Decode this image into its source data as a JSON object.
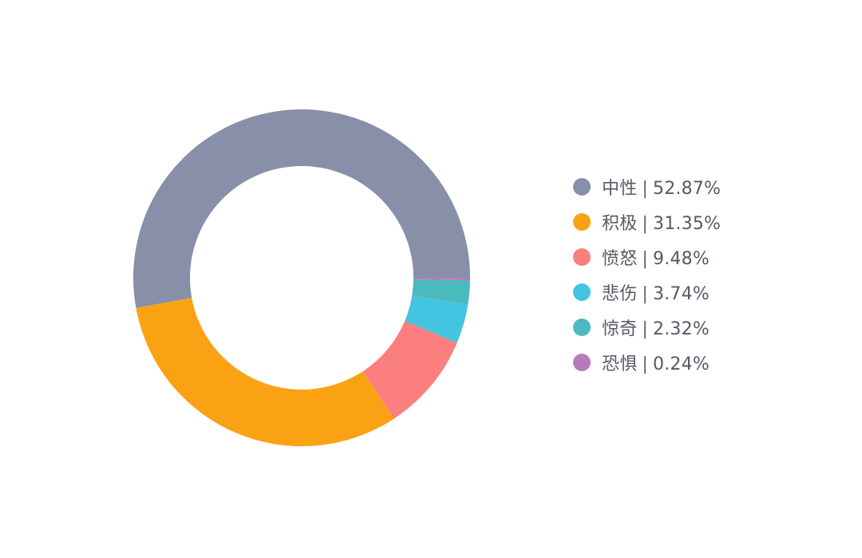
{
  "chart_data": {
    "type": "pie",
    "donut": true,
    "legend_position": "right",
    "slices": [
      {
        "label": "中性",
        "value": 52.87,
        "value_label": "52.87%",
        "color": "#8790a8"
      },
      {
        "label": "积极",
        "value": 31.35,
        "value_label": "31.35%",
        "color": "#fba214"
      },
      {
        "label": "愤怒",
        "value": 9.48,
        "value_label": "9.48%",
        "color": "#fb7f7e"
      },
      {
        "label": "悲伤",
        "value": 3.74,
        "value_label": "3.74%",
        "color": "#43c4e1"
      },
      {
        "label": "惊奇",
        "value": 2.32,
        "value_label": "2.32%",
        "color": "#4bbabf"
      },
      {
        "label": "恐惧",
        "value": 0.24,
        "value_label": "0.24%",
        "color": "#b77bbd"
      }
    ],
    "legend_separator": "|"
  }
}
